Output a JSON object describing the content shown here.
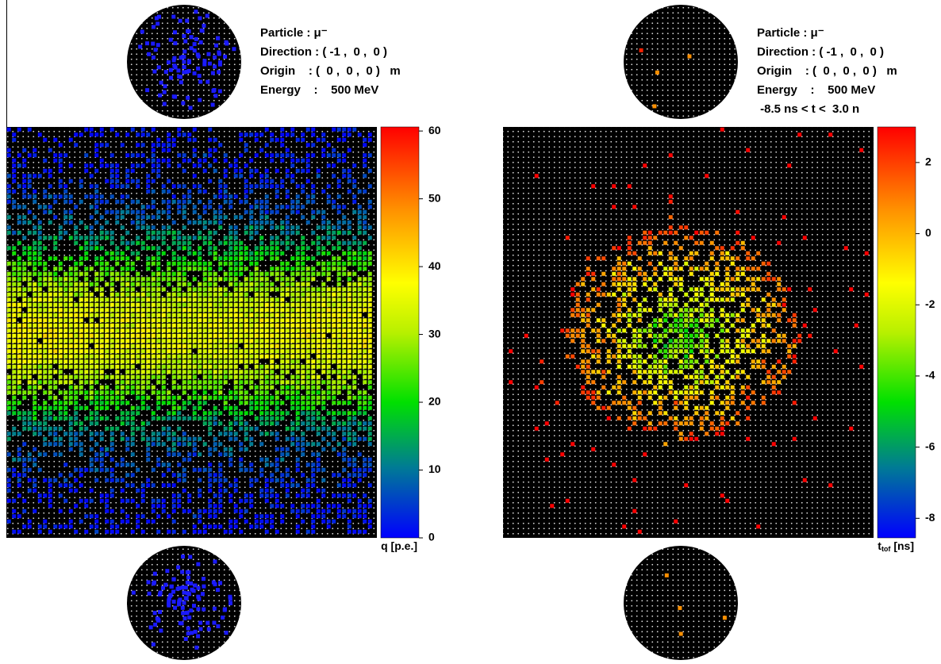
{
  "panels": [
    {
      "info": [
        "Particle : μ⁻",
        "Direction : ( -1 ,  0 ,  0 )",
        "Origin    : (  0 ,  0 ,  0 )   m",
        "Energy    :    500 MeV"
      ],
      "colorbar": {
        "label": "q [p.e.]",
        "range": [
          0,
          60.6
        ],
        "ticks": [
          0,
          10,
          20,
          30,
          40,
          50,
          60
        ]
      }
    },
    {
      "info": [
        "Particle : μ⁻",
        "Direction : ( -1 ,  0 ,  0 )",
        "Origin    : (  0 ,  0 ,  0 )   m",
        "Energy    :    500 MeV",
        " -8.5 ns < t <  3.0 n"
      ],
      "colorbar": {
        "label": "t",
        "label_sub": "tof",
        "label_unit": " [ns]",
        "range": [
          -8.55,
          3.0
        ],
        "ticks": [
          -8,
          -6,
          -4,
          -2,
          0,
          2
        ]
      }
    }
  ]
}
